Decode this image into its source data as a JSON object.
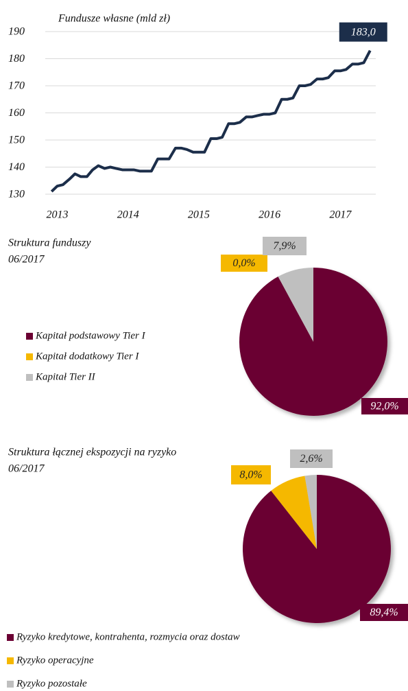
{
  "chart_data": [
    {
      "type": "line",
      "title": "Fundusze własne (mld zł)",
      "x": [
        2012.92,
        2013.0,
        2013.08,
        2013.17,
        2013.25,
        2013.33,
        2013.42,
        2013.5,
        2013.58,
        2013.67,
        2013.75,
        2013.83,
        2013.92,
        2014.0,
        2014.08,
        2014.17,
        2014.25,
        2014.33,
        2014.42,
        2014.5,
        2014.58,
        2014.67,
        2014.75,
        2014.83,
        2014.92,
        2015.0,
        2015.08,
        2015.17,
        2015.25,
        2015.33,
        2015.42,
        2015.5,
        2015.58,
        2015.67,
        2015.75,
        2015.83,
        2015.92,
        2016.0,
        2016.08,
        2016.17,
        2016.25,
        2016.33,
        2016.42,
        2016.5,
        2016.58,
        2016.67,
        2016.75,
        2016.83,
        2016.92,
        2017.0,
        2017.08,
        2017.17,
        2017.25,
        2017.33,
        2017.42
      ],
      "series": [
        {
          "name": "Fundusze własne",
          "color": "#1c2e4a",
          "values": [
            131,
            133,
            133.5,
            135.5,
            137.5,
            136.5,
            136.5,
            139,
            140.5,
            139.5,
            140,
            139.5,
            139,
            139,
            139,
            138.5,
            138.5,
            138.5,
            143,
            143,
            143,
            147,
            147,
            146.5,
            145.5,
            145.5,
            145.5,
            150.5,
            150.5,
            151,
            156,
            156,
            156.5,
            158.5,
            158.5,
            159,
            159.5,
            159.5,
            160,
            165,
            165,
            165.5,
            170,
            170,
            170.5,
            172.5,
            172.5,
            173,
            175.5,
            175.5,
            176,
            178,
            178,
            178.5,
            183
          ],
          "value_labels": [
            null,
            null,
            null,
            null,
            null,
            null,
            null,
            null,
            null,
            null,
            null,
            null,
            null,
            null,
            null,
            null,
            null,
            null,
            null,
            null,
            null,
            null,
            null,
            null,
            null,
            null,
            null,
            null,
            null,
            null,
            null,
            null,
            null,
            null,
            null,
            null,
            null,
            null,
            null,
            null,
            null,
            null,
            null,
            null,
            null,
            null,
            null,
            null,
            null,
            null,
            null,
            null,
            null,
            null,
            "183,0"
          ]
        }
      ],
      "xlim": [
        2012.85,
        2017.5
      ],
      "xticks": [
        2013,
        2014,
        2015,
        2016,
        2017
      ],
      "ylim": [
        130,
        190
      ],
      "yticks": [
        130,
        140,
        150,
        160,
        170,
        180,
        190
      ],
      "grid": true
    },
    {
      "type": "pie",
      "title": "Struktura funduszy",
      "subtitle": "06/2017",
      "categories": [
        "Kapitał podstawowy Tier I",
        "Kapitał dodatkowy Tier I",
        "Kapitał Tier II"
      ],
      "values": [
        92.0,
        0.0,
        7.9
      ],
      "value_labels": [
        "92,0%",
        "0,0%",
        "7,9%"
      ],
      "colors": [
        "#6b0033",
        "#f5b800",
        "#bfbfbf"
      ]
    },
    {
      "type": "pie",
      "title": "Struktura łącznej ekspozycji na ryzyko",
      "subtitle": "06/2017",
      "categories": [
        "Ryzyko kredytowe, kontrahenta, rozmycia oraz dostaw",
        "Ryzyko operacyjne",
        "Ryzyko pozostałe"
      ],
      "values": [
        89.4,
        8.0,
        2.6
      ],
      "value_labels": [
        "89,4%",
        "8,0%",
        "2,6%"
      ],
      "colors": [
        "#6b0033",
        "#f5b800",
        "#bfbfbf"
      ]
    }
  ]
}
